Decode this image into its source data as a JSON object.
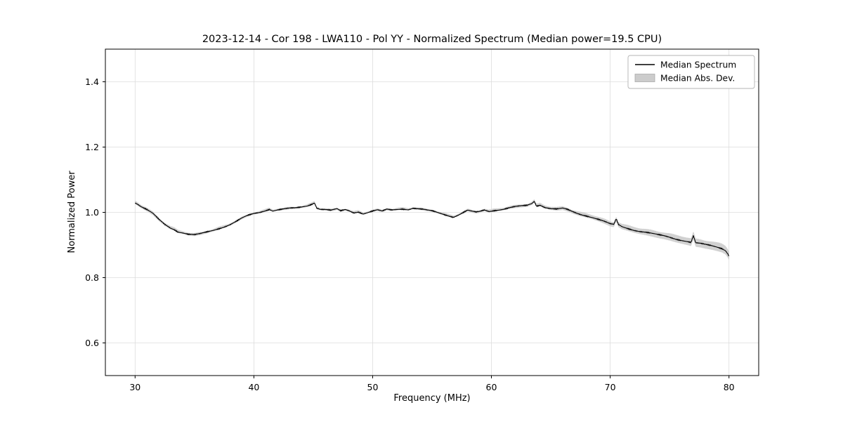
{
  "chart_data": {
    "type": "line",
    "title": "2023-12-14 - Cor 198 - LWA110 - Pol YY - Normalized Spectrum (Median power=19.5 CPU)",
    "xlabel": "Frequency (MHz)",
    "ylabel": "Normalized Power",
    "xlim": [
      27.5,
      82.5
    ],
    "ylim": [
      0.5,
      1.5
    ],
    "xticks": [
      30,
      40,
      50,
      60,
      70,
      80
    ],
    "yticks": [
      0.6,
      0.8,
      1.0,
      1.2,
      1.4
    ],
    "grid": true,
    "background_color": "#ffffff",
    "grid_color": "#dcdcdc",
    "line_color": "#000000",
    "band_color": "#cccccc",
    "legend": [
      {
        "label": "Median Spectrum",
        "type": "line",
        "color": "#000000"
      },
      {
        "label": "Median Abs. Dev.",
        "type": "band",
        "color": "#cccccc"
      }
    ],
    "noise_amplitude": 0.0032,
    "series": [
      {
        "name": "Median Spectrum",
        "points": [
          [
            30.0,
            1.03
          ],
          [
            30.2,
            1.026
          ],
          [
            30.5,
            1.018
          ],
          [
            31.0,
            1.008
          ],
          [
            31.5,
            0.996
          ],
          [
            32.0,
            0.978
          ],
          [
            32.5,
            0.963
          ],
          [
            33.0,
            0.952
          ],
          [
            33.3,
            0.948
          ],
          [
            33.6,
            0.941
          ],
          [
            34.0,
            0.938
          ],
          [
            34.5,
            0.933
          ],
          [
            35.0,
            0.931
          ],
          [
            35.5,
            0.934
          ],
          [
            36.0,
            0.939
          ],
          [
            36.5,
            0.944
          ],
          [
            37.0,
            0.95
          ],
          [
            37.5,
            0.956
          ],
          [
            38.0,
            0.963
          ],
          [
            38.5,
            0.972
          ],
          [
            39.0,
            0.982
          ],
          [
            39.5,
            0.99
          ],
          [
            40.0,
            0.996
          ],
          [
            40.5,
            1.0
          ],
          [
            41.0,
            1.006
          ],
          [
            41.3,
            1.01
          ],
          [
            41.6,
            1.005
          ],
          [
            42.0,
            1.008
          ],
          [
            42.5,
            1.01
          ],
          [
            43.0,
            1.012
          ],
          [
            43.5,
            1.013
          ],
          [
            44.0,
            1.016
          ],
          [
            44.5,
            1.02
          ],
          [
            44.9,
            1.026
          ],
          [
            45.1,
            1.03
          ],
          [
            45.3,
            1.014
          ],
          [
            45.6,
            1.01
          ],
          [
            46.0,
            1.009
          ],
          [
            46.5,
            1.006
          ],
          [
            47.0,
            1.01
          ],
          [
            47.3,
            1.004
          ],
          [
            47.7,
            1.008
          ],
          [
            48.0,
            1.005
          ],
          [
            48.4,
            0.999
          ],
          [
            48.8,
            1.002
          ],
          [
            49.2,
            0.996
          ],
          [
            49.6,
            1.0
          ],
          [
            50.0,
            1.004
          ],
          [
            50.4,
            1.007
          ],
          [
            50.8,
            1.003
          ],
          [
            51.2,
            1.009
          ],
          [
            51.6,
            1.007
          ],
          [
            52.0,
            1.009
          ],
          [
            52.5,
            1.011
          ],
          [
            53.0,
            1.009
          ],
          [
            53.4,
            1.013
          ],
          [
            53.8,
            1.011
          ],
          [
            54.2,
            1.009
          ],
          [
            54.6,
            1.006
          ],
          [
            55.0,
            1.004
          ],
          [
            55.5,
            0.999
          ],
          [
            56.0,
            0.994
          ],
          [
            56.5,
            0.989
          ],
          [
            56.8,
            0.986
          ],
          [
            57.2,
            0.992
          ],
          [
            57.6,
            0.999
          ],
          [
            58.0,
            1.006
          ],
          [
            58.3,
            1.003
          ],
          [
            58.7,
            1.0
          ],
          [
            59.0,
            1.002
          ],
          [
            59.4,
            1.007
          ],
          [
            59.8,
            1.003
          ],
          [
            60.2,
            1.006
          ],
          [
            60.6,
            1.008
          ],
          [
            61.0,
            1.01
          ],
          [
            61.5,
            1.014
          ],
          [
            62.0,
            1.017
          ],
          [
            62.5,
            1.019
          ],
          [
            63.0,
            1.021
          ],
          [
            63.4,
            1.027
          ],
          [
            63.6,
            1.034
          ],
          [
            63.8,
            1.02
          ],
          [
            64.1,
            1.023
          ],
          [
            64.5,
            1.016
          ],
          [
            65.0,
            1.012
          ],
          [
            65.5,
            1.01
          ],
          [
            66.0,
            1.012
          ],
          [
            66.4,
            1.008
          ],
          [
            66.8,
            1.002
          ],
          [
            67.2,
            0.997
          ],
          [
            67.6,
            0.993
          ],
          [
            68.0,
            0.99
          ],
          [
            68.5,
            0.985
          ],
          [
            69.0,
            0.979
          ],
          [
            69.5,
            0.972
          ],
          [
            70.0,
            0.964
          ],
          [
            70.3,
            0.962
          ],
          [
            70.5,
            0.979
          ],
          [
            70.7,
            0.962
          ],
          [
            71.0,
            0.956
          ],
          [
            71.5,
            0.951
          ],
          [
            72.0,
            0.946
          ],
          [
            72.5,
            0.942
          ],
          [
            73.0,
            0.939
          ],
          [
            73.5,
            0.935
          ],
          [
            74.0,
            0.931
          ],
          [
            74.5,
            0.928
          ],
          [
            75.0,
            0.924
          ],
          [
            75.5,
            0.919
          ],
          [
            76.0,
            0.915
          ],
          [
            76.5,
            0.911
          ],
          [
            76.8,
            0.908
          ],
          [
            77.0,
            0.928
          ],
          [
            77.2,
            0.906
          ],
          [
            77.6,
            0.904
          ],
          [
            78.0,
            0.901
          ],
          [
            78.5,
            0.898
          ],
          [
            79.0,
            0.894
          ],
          [
            79.4,
            0.89
          ],
          [
            79.7,
            0.884
          ],
          [
            79.9,
            0.874
          ],
          [
            80.0,
            0.867
          ]
        ]
      },
      {
        "name": "Median Abs. Dev.",
        "halfwidth_points": [
          [
            30,
            0.006
          ],
          [
            34,
            0.005
          ],
          [
            40,
            0.004
          ],
          [
            55,
            0.004
          ],
          [
            62,
            0.005
          ],
          [
            66,
            0.006
          ],
          [
            70,
            0.008
          ],
          [
            73,
            0.01
          ],
          [
            76,
            0.012
          ],
          [
            80,
            0.014
          ]
        ]
      }
    ]
  }
}
